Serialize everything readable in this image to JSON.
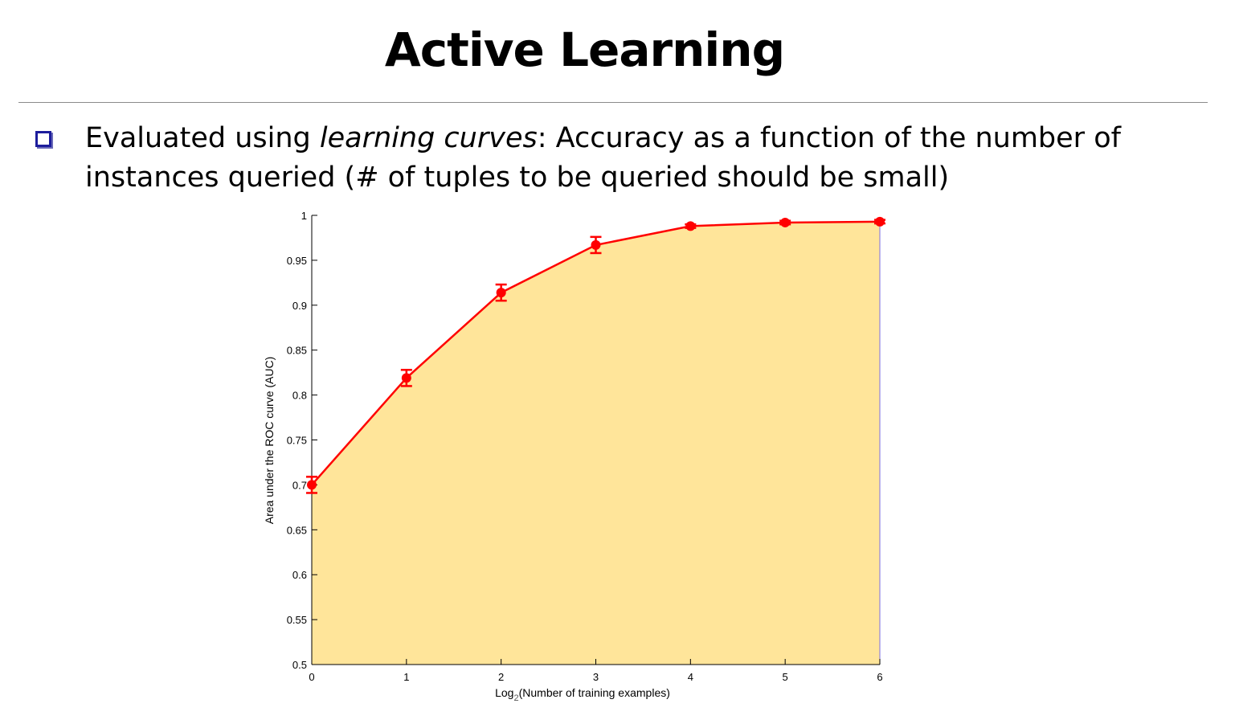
{
  "slide": {
    "title": "Active Learning",
    "bullet": {
      "part1": "Evaluated using ",
      "emphasis": "learning curves",
      "part2": ": Accuracy as a function of the number of instances queried (# of tuples to be queried should be small)"
    }
  },
  "chart_data": {
    "type": "area",
    "x": [
      0,
      1,
      2,
      3,
      4,
      5,
      6
    ],
    "series": [
      {
        "values": [
          0.7,
          0.819,
          0.914,
          0.967,
          0.988,
          0.992,
          0.993
        ],
        "errors": [
          0.009,
          0.009,
          0.009,
          0.009,
          0.002,
          0.002,
          0.002
        ]
      }
    ],
    "xlabel_prefix": "Log",
    "xlabel_subscript": "2",
    "xlabel_rest": "(Number of training examples)",
    "ylabel": "Area under the ROC curve (AUC)",
    "xlim": [
      0,
      6
    ],
    "ylim": [
      0.5,
      1
    ],
    "xticks": [
      "0",
      "1",
      "2",
      "3",
      "4",
      "5",
      "6"
    ],
    "yticks": [
      "0.5",
      "0.55",
      "0.6",
      "0.65",
      "0.7",
      "0.75",
      "0.8",
      "0.85",
      "0.9",
      "0.95",
      "1"
    ],
    "grid": false,
    "colors": {
      "line": "#ff0000",
      "fill": "#ffe59a",
      "axis": "#000000",
      "fill_edge": "#7b6fe0"
    }
  }
}
